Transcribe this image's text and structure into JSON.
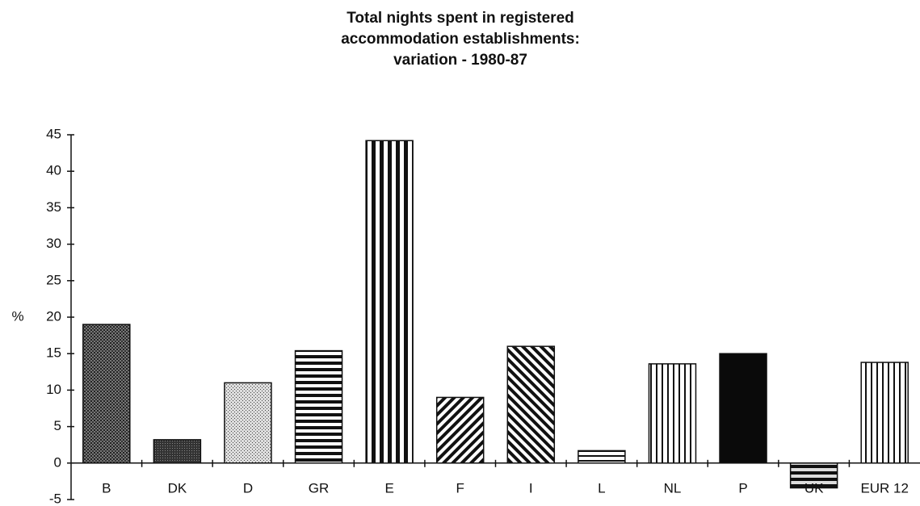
{
  "chart_data": {
    "type": "bar",
    "title": "Total nights spent in registered accommodation establishments: variation - 1980-87",
    "y_label": "%",
    "categories": [
      "B",
      "DK",
      "D",
      "GR",
      "E",
      "F",
      "I",
      "L",
      "NL",
      "P",
      "UK",
      "EUR 12"
    ],
    "values": [
      19,
      3.2,
      11,
      15.4,
      44.2,
      9,
      16,
      1.7,
      13.6,
      15,
      -3.4,
      13.8
    ],
    "color": "#111111",
    "ylim": [
      -5,
      45
    ],
    "yticks": [
      -5,
      0,
      5,
      10,
      15,
      20,
      25,
      30,
      35,
      40,
      45
    ],
    "grid": false
  }
}
